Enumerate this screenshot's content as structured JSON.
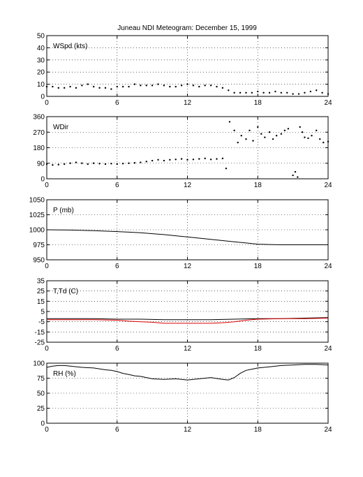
{
  "title": "Juneau NDI Meteogram:   December 15, 1999",
  "chart_data": [
    {
      "type": "scatter",
      "label": "WSpd (kts)",
      "x_ticks": [
        "0",
        "6",
        "12",
        "18",
        "24"
      ],
      "y_ticks": [
        "0",
        "10",
        "20",
        "30",
        "40",
        "50"
      ],
      "xlim": [
        0,
        24
      ],
      "ylim": [
        0,
        50
      ],
      "grid": true,
      "series": [
        {
          "color": "#000000",
          "x": [
            0,
            0.5,
            1,
            1.5,
            2,
            2.5,
            3,
            3.5,
            4,
            4.5,
            5,
            5.5,
            6,
            6.5,
            7,
            7.5,
            8,
            8.5,
            9,
            9.5,
            10,
            10.5,
            11,
            11.5,
            12,
            12.5,
            13,
            13.5,
            14,
            14.5,
            15,
            15.5,
            16,
            16.5,
            17,
            17.5,
            18,
            18.5,
            19,
            19.5,
            20,
            20.5,
            21,
            21.5,
            22,
            22.5,
            23,
            23.5,
            24
          ],
          "y": [
            8,
            8,
            7,
            7,
            8,
            7,
            9,
            10,
            8,
            7,
            7,
            6,
            8,
            8,
            8,
            10,
            9,
            9,
            9,
            10,
            9,
            8,
            8,
            9,
            10,
            9,
            8,
            9,
            9,
            8,
            7,
            5,
            3,
            3,
            3,
            3,
            4,
            3,
            3,
            4,
            3,
            3,
            2,
            2,
            3,
            4,
            5,
            3,
            2
          ]
        }
      ]
    },
    {
      "type": "scatter",
      "label": "WDir",
      "x_ticks": [
        "0",
        "6",
        "12",
        "18",
        "24"
      ],
      "y_ticks": [
        "0",
        "90",
        "180",
        "270",
        "360"
      ],
      "xlim": [
        0,
        24
      ],
      "ylim": [
        0,
        360
      ],
      "grid": true,
      "series": [
        {
          "color": "#000000",
          "x": [
            0,
            0.5,
            1,
            1.5,
            2,
            2.5,
            3,
            3.5,
            4,
            4.5,
            5,
            5.5,
            6,
            6.5,
            7,
            7.5,
            8,
            8.5,
            9,
            9.5,
            10,
            10.5,
            11,
            11.5,
            12,
            12.5,
            13,
            13.5,
            14,
            14.5,
            15,
            15.3,
            15.6,
            16,
            16.3,
            16.6,
            17,
            17.3,
            17.6,
            18,
            18.3,
            18.6,
            19,
            19.3,
            19.6,
            20,
            20.3,
            20.6,
            21,
            21.2,
            21.4,
            21.6,
            21.8,
            22,
            22.3,
            22.6,
            23,
            23.3,
            23.6,
            24
          ],
          "y": [
            85,
            80,
            82,
            85,
            90,
            95,
            90,
            85,
            90,
            88,
            85,
            88,
            85,
            88,
            90,
            92,
            95,
            100,
            105,
            110,
            105,
            110,
            112,
            115,
            110,
            112,
            115,
            118,
            112,
            115,
            118,
            60,
            330,
            280,
            210,
            250,
            230,
            280,
            220,
            300,
            260,
            240,
            270,
            230,
            250,
            260,
            280,
            290,
            20,
            40,
            10,
            300,
            270,
            240,
            235,
            250,
            280,
            230,
            210,
            215
          ]
        }
      ]
    },
    {
      "type": "line",
      "label": "P (mb)",
      "x_ticks": [
        "0",
        "6",
        "12",
        "18",
        "24"
      ],
      "y_ticks": [
        "950",
        "975",
        "1000",
        "1025",
        "1050"
      ],
      "xlim": [
        0,
        24
      ],
      "ylim": [
        950,
        1050
      ],
      "grid": true,
      "series": [
        {
          "color": "#000000",
          "x": [
            0,
            2,
            4,
            6,
            7,
            8,
            9,
            10,
            11,
            12,
            13,
            14,
            15,
            16,
            17,
            18,
            19,
            20,
            21,
            22,
            23,
            24
          ],
          "y": [
            1000,
            999.5,
            998.5,
            997,
            996,
            995,
            993.5,
            992,
            990,
            988,
            986,
            984,
            982,
            980,
            978,
            976,
            975.5,
            975,
            975,
            975,
            975,
            975
          ]
        }
      ]
    },
    {
      "type": "line",
      "label": "T,Td (C)",
      "x_ticks": [
        "0",
        "6",
        "12",
        "18",
        "24"
      ],
      "y_ticks": [
        "-25",
        "-15",
        "-5",
        "5",
        "15",
        "25",
        "35"
      ],
      "xlim": [
        0,
        24
      ],
      "ylim": [
        -25,
        35
      ],
      "grid": true,
      "series": [
        {
          "color": "#000000",
          "x": [
            0,
            2,
            4,
            6,
            8,
            10,
            12,
            14,
            16,
            18,
            20,
            22,
            24
          ],
          "y": [
            -2,
            -2,
            -2,
            -2.5,
            -2.5,
            -3,
            -3,
            -3,
            -2.5,
            -2,
            -2,
            -1.5,
            -1
          ]
        },
        {
          "color": "#e00000",
          "x": [
            0,
            2,
            4,
            6,
            7,
            8,
            9,
            10,
            11,
            12,
            13,
            14,
            15,
            16,
            17,
            18,
            20,
            22,
            24
          ],
          "y": [
            -3,
            -3,
            -3,
            -3.5,
            -4.5,
            -5,
            -5.5,
            -6.5,
            -6.5,
            -6.5,
            -6.5,
            -6.5,
            -6,
            -5,
            -3.5,
            -2.5,
            -2,
            -2,
            -1.5
          ]
        }
      ]
    },
    {
      "type": "line",
      "label": "RH (%)",
      "x_ticks": [
        "0",
        "6",
        "12",
        "18",
        "24"
      ],
      "y_ticks": [
        "0",
        "25",
        "50",
        "75",
        "100"
      ],
      "xlim": [
        0,
        24
      ],
      "ylim": [
        0,
        100
      ],
      "grid": true,
      "series": [
        {
          "color": "#000000",
          "x": [
            0,
            0.5,
            1,
            1.5,
            2,
            3,
            4,
            5,
            5.5,
            6,
            6.5,
            7,
            7.5,
            8,
            8.5,
            9,
            10,
            11,
            12,
            13,
            14,
            15,
            15.5,
            16,
            16.5,
            17,
            17.5,
            18,
            19,
            20,
            21,
            22,
            23,
            24
          ],
          "y": [
            93,
            95,
            96,
            96,
            95,
            93,
            92,
            89,
            88,
            86,
            83,
            81,
            79,
            78,
            76,
            74,
            73,
            74,
            72,
            74,
            76,
            73,
            72,
            76,
            83,
            88,
            90,
            92,
            94,
            96,
            97,
            98,
            98,
            97
          ]
        }
      ]
    }
  ]
}
